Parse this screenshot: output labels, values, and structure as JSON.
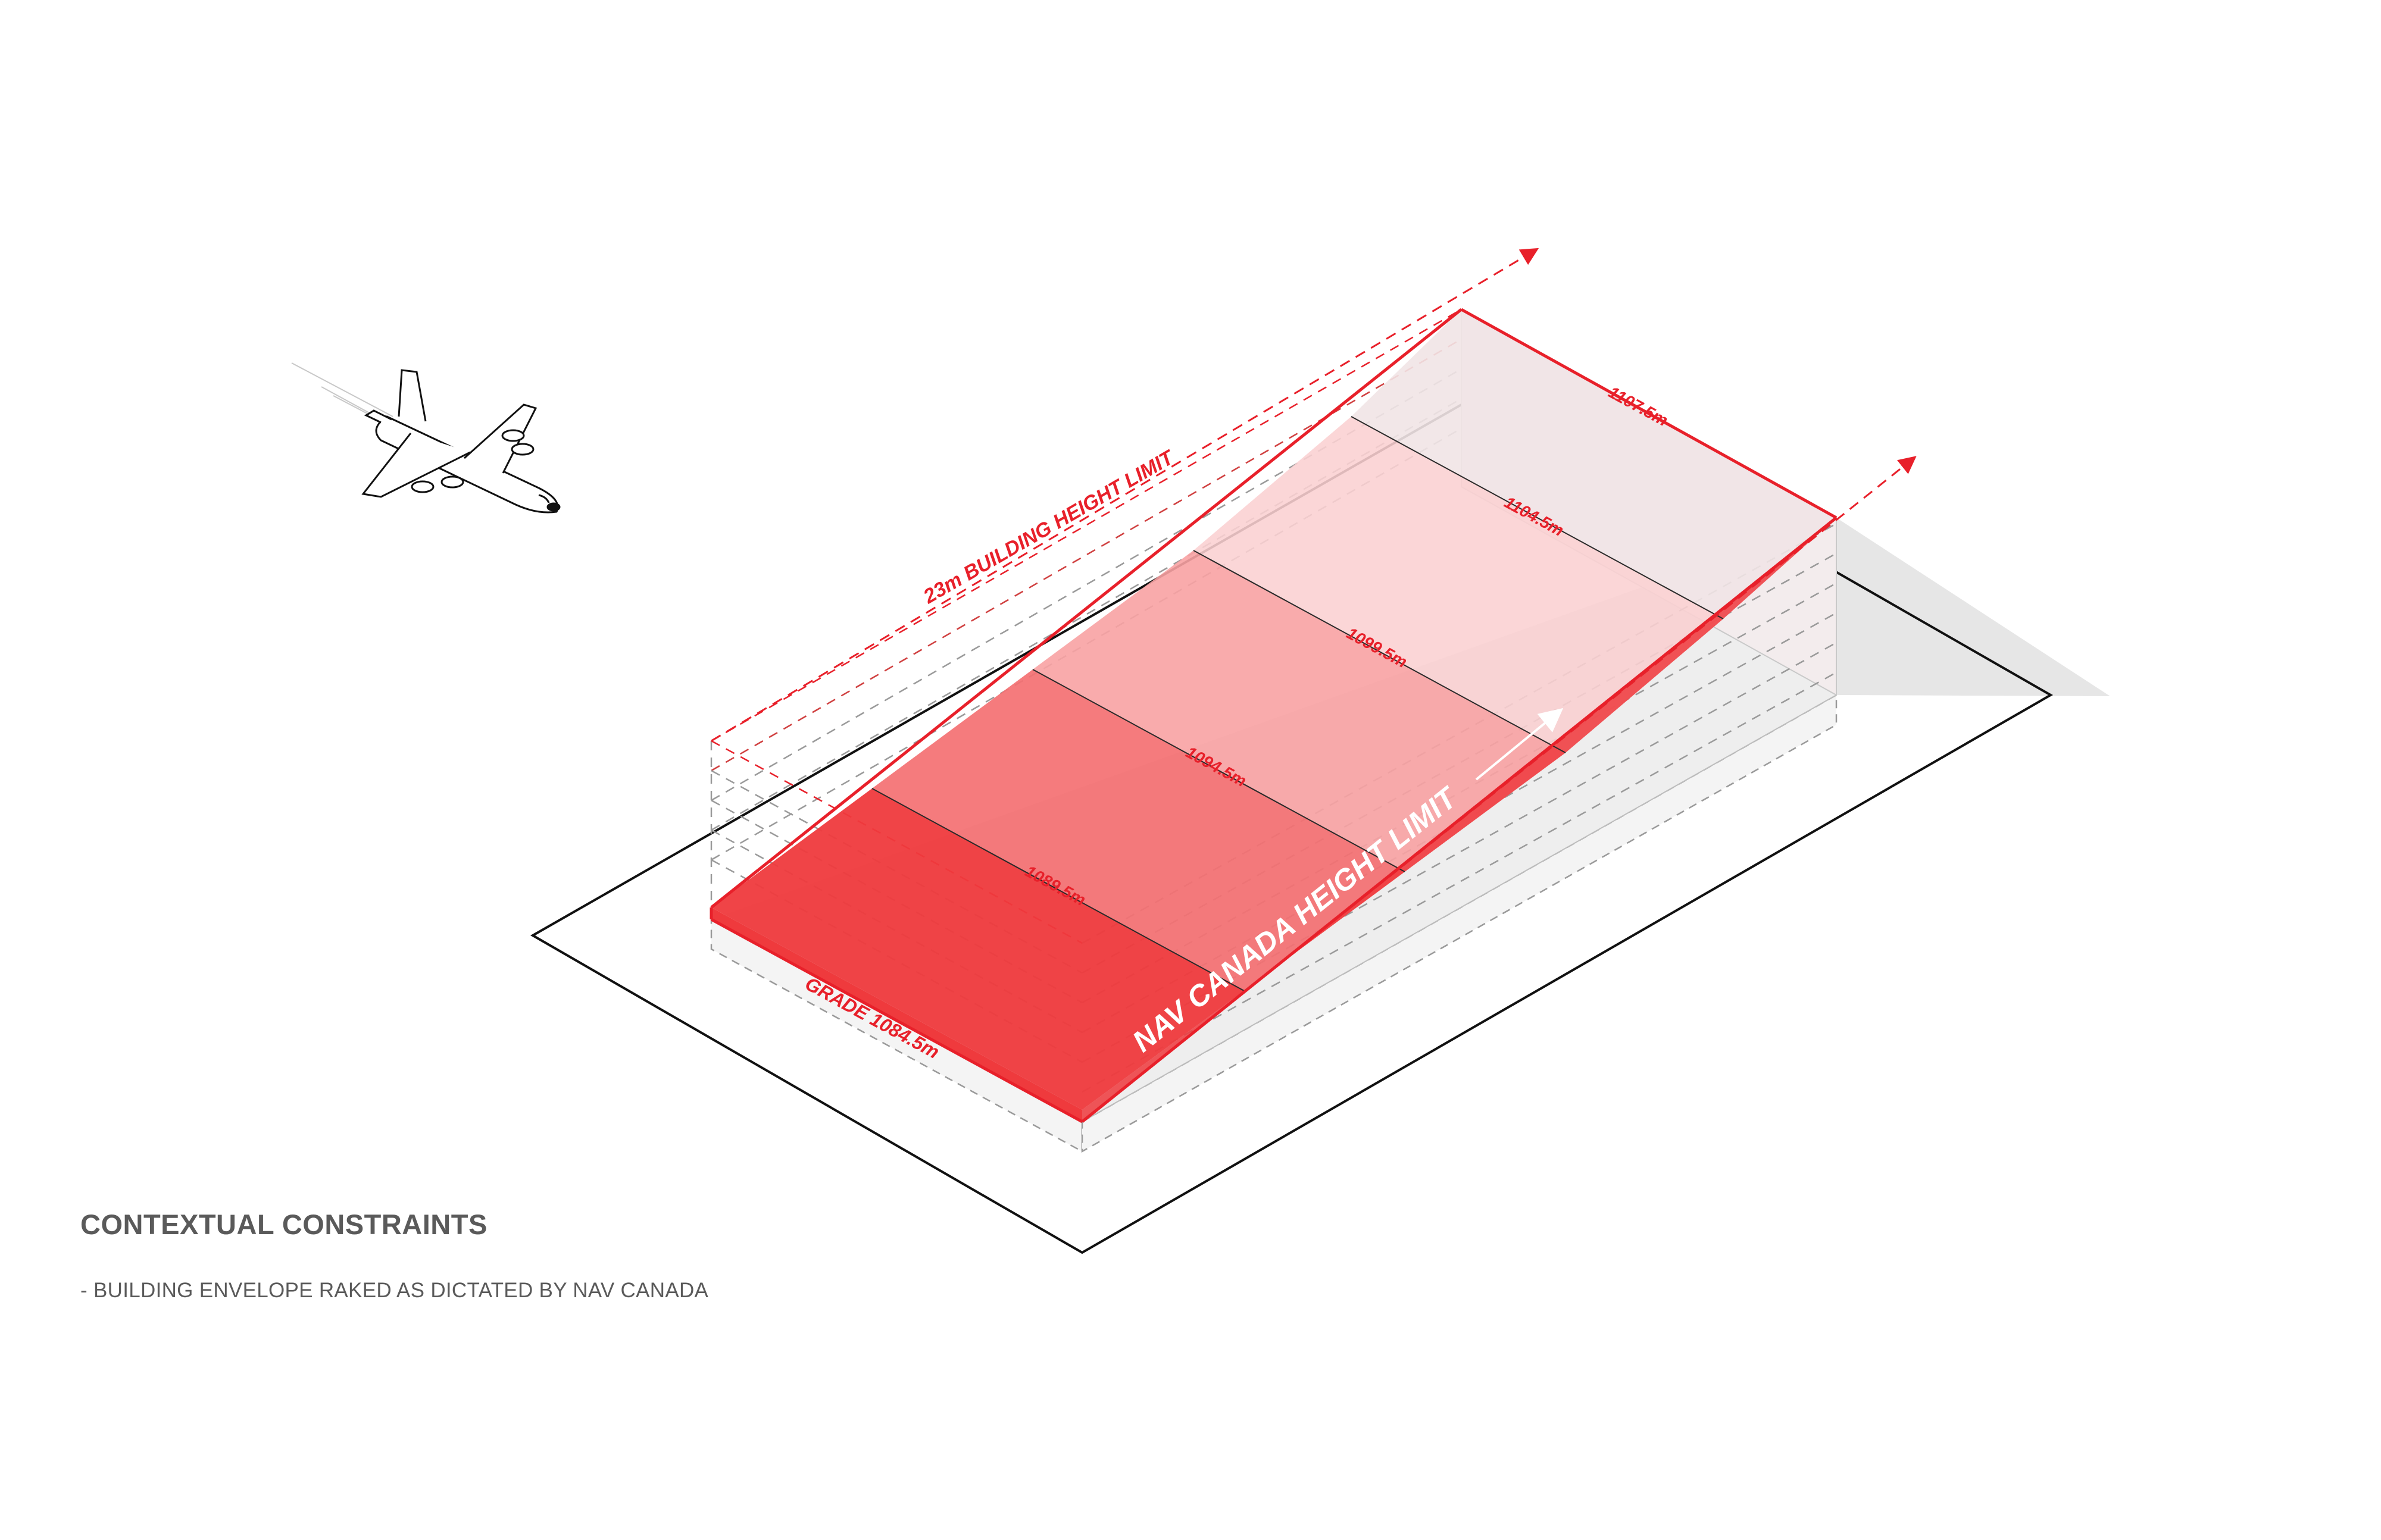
{
  "diagram": {
    "labels": {
      "building_height_limit": "23m BUILDING HEIGHT LIMIT",
      "nav_canada_height_limit": "NAV CANADA HEIGHT LIMIT",
      "grade": "GRADE 1084.5m",
      "level_1": "1089.5m",
      "level_2": "1094.5m",
      "level_3": "1099.5m",
      "level_4": "1104.5m",
      "level_5": "1107.5m"
    },
    "colors": {
      "accent": "#e8202a",
      "band_1": "#ef3a3d",
      "band_2": "#f47072",
      "band_3": "#f8a2a3",
      "band_4": "#fbd0d1",
      "band_5": "#f1e4e5",
      "shadow": "#e8e8e8",
      "outline": "#111111"
    },
    "icons": [
      "airplane-icon",
      "arrow-icon"
    ]
  },
  "caption": {
    "title": "CONTEXTUAL CONSTRAINTS",
    "subtitle": "- BUILDING ENVELOPE RAKED AS DICTATED BY NAV CANADA"
  }
}
